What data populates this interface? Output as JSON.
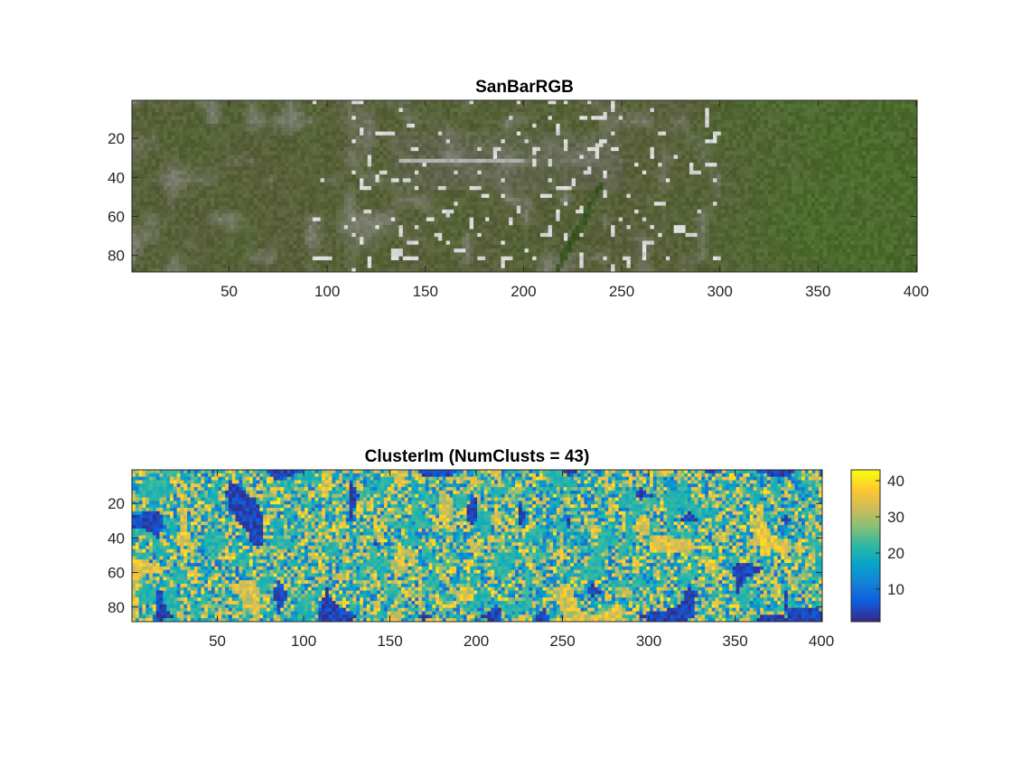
{
  "chart_data": [
    {
      "type": "image",
      "title": "SanBarRGB",
      "x_ticks": [
        "50",
        "100",
        "150",
        "200",
        "250",
        "300",
        "350",
        "400"
      ],
      "y_ticks": [
        "20",
        "40",
        "60",
        "80"
      ],
      "xlim": [
        0.5,
        400.5
      ],
      "ylim": [
        0.5,
        88.5
      ],
      "x_tick_values": [
        50,
        100,
        150,
        200,
        250,
        300,
        350,
        400
      ],
      "y_tick_values": [
        20,
        40,
        60,
        80
      ],
      "y_direction": "reverse",
      "colors": {
        "base": "#5c5e3d",
        "vegetation": "#4b6b2d",
        "urban": "#8a8a86",
        "bright": "#d8d8d8",
        "runway": "#6f7068"
      }
    },
    {
      "type": "heatmap",
      "title": "ClusterIm (NumClusts = 43)",
      "x_ticks": [
        "50",
        "100",
        "150",
        "200",
        "250",
        "300",
        "350",
        "400"
      ],
      "y_ticks": [
        "20",
        "40",
        "60",
        "80"
      ],
      "xlim": [
        0.5,
        400.5
      ],
      "ylim": [
        0.5,
        88.5
      ],
      "x_tick_values": [
        50,
        100,
        150,
        200,
        250,
        300,
        350,
        400
      ],
      "y_tick_values": [
        20,
        40,
        60,
        80
      ],
      "y_direction": "reverse",
      "colormap": "parula",
      "clim": [
        1,
        43
      ],
      "colorbar": {
        "ticks": [
          "10",
          "20",
          "30",
          "40"
        ],
        "tick_values": [
          10,
          20,
          30,
          40
        ],
        "location": "right"
      },
      "colors": {
        "parula_stops": [
          "#352a87",
          "#0f5cdd",
          "#1481d6",
          "#06a4ca",
          "#2eb7a4",
          "#87bf77",
          "#d1bb59",
          "#fec832",
          "#f9fb0e"
        ]
      }
    }
  ]
}
